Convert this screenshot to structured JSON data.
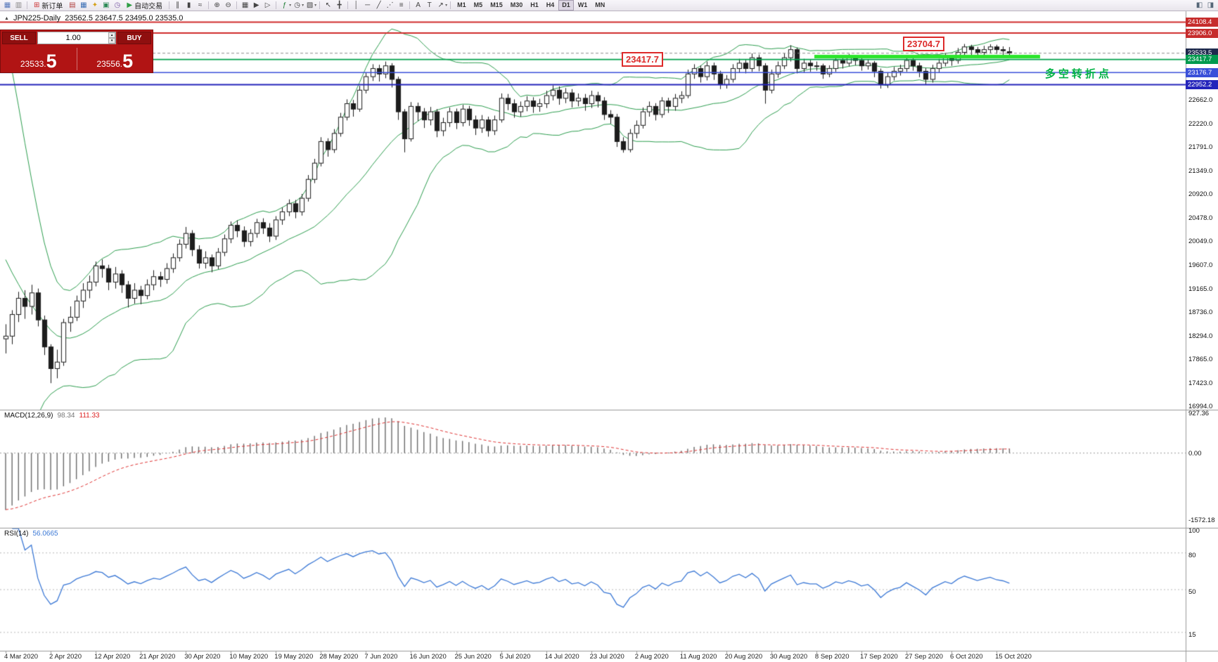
{
  "toolbar": {
    "file_icons": [
      {
        "name": "new-chart-icon",
        "glyph": "▦",
        "color": "#5577bb"
      },
      {
        "name": "profiles-icon",
        "glyph": "▥",
        "color": "#888888"
      }
    ],
    "new_order": {
      "label": "新订单",
      "icon_glyph": "⊞",
      "icon_color": "#cc3333"
    },
    "panel_icons": [
      {
        "name": "market-watch-icon",
        "glyph": "▤",
        "color": "#b0413e"
      },
      {
        "name": "data-window-icon",
        "glyph": "▦",
        "color": "#3b6fb5"
      },
      {
        "name": "navigator-icon",
        "glyph": "✦",
        "color": "#d4a017"
      },
      {
        "name": "terminal-icon",
        "glyph": "▣",
        "color": "#2e8b57"
      },
      {
        "name": "strategy-tester-icon",
        "glyph": "◷",
        "color": "#7b5aa6"
      }
    ],
    "autotrading": {
      "label": "自动交易",
      "icon_glyph": "▶",
      "icon_color": "#2e9e44"
    },
    "chart_type_icons": [
      {
        "name": "bar-chart-icon",
        "glyph": "∥",
        "color": "#444444"
      },
      {
        "name": "candlestick-chart-icon",
        "glyph": "▮",
        "color": "#444444"
      },
      {
        "name": "line-chart-icon",
        "glyph": "≈",
        "color": "#444444"
      }
    ],
    "zoom_icons": [
      {
        "name": "zoom-in-icon",
        "glyph": "⊕",
        "color": "#444444"
      },
      {
        "name": "zoom-out-icon",
        "glyph": "⊖",
        "color": "#444444"
      }
    ],
    "window_icons": [
      {
        "name": "tile-windows-icon",
        "glyph": "▦",
        "color": "#444444"
      },
      {
        "name": "auto-scroll-icon",
        "glyph": "▶",
        "color": "#444444"
      },
      {
        "name": "chart-shift-icon",
        "glyph": "▷",
        "color": "#444444"
      }
    ],
    "insert_icons": [
      {
        "name": "indicators-icon",
        "glyph": "ƒ",
        "color": "#1e7e34",
        "caret": true
      },
      {
        "name": "periods-icon",
        "glyph": "◷",
        "color": "#444444",
        "caret": true
      },
      {
        "name": "templates-icon",
        "glyph": "▧",
        "color": "#444444",
        "caret": true
      }
    ],
    "cursor_icons": [
      {
        "name": "cursor-icon",
        "glyph": "↖",
        "color": "#444444"
      },
      {
        "name": "crosshair-icon",
        "glyph": "╋",
        "color": "#444444"
      }
    ],
    "drawing_icons": [
      {
        "name": "vertical-line-icon",
        "glyph": "│",
        "color": "#444444"
      },
      {
        "name": "horizontal-line-icon",
        "glyph": "─",
        "color": "#444444"
      },
      {
        "name": "trendline-icon",
        "glyph": "╱",
        "color": "#444444"
      },
      {
        "name": "equidistant-channel-icon",
        "glyph": "⋰",
        "color": "#444444"
      },
      {
        "name": "fibonacci-icon",
        "glyph": "≡",
        "color": "#444444"
      }
    ],
    "text_icons": [
      {
        "name": "text-icon",
        "glyph": "A",
        "color": "#444444"
      },
      {
        "name": "text-label-icon",
        "glyph": "T",
        "color": "#444444"
      },
      {
        "name": "arrows-icon",
        "glyph": "↗",
        "color": "#444444",
        "caret": true
      }
    ],
    "timeframes": {
      "items": [
        "M1",
        "M5",
        "M15",
        "M30",
        "H1",
        "H4",
        "D1",
        "W1",
        "MN"
      ],
      "active": "D1"
    },
    "right_icons": [
      {
        "name": "charts-toggle-icon",
        "glyph": "◧",
        "color": "#556677"
      },
      {
        "name": "docking-icon",
        "glyph": "◨",
        "color": "#556677"
      }
    ]
  },
  "chart": {
    "title_text": "JPN225-Daily",
    "ohlc_text": "23562.5 23647.5 23495.0 23535.0",
    "one_click": {
      "sell_label": "SELL",
      "buy_label": "BUY",
      "volume": "1.00",
      "sell_price_main": "23533.",
      "sell_price_big": "5",
      "buy_price_main": "23556.",
      "buy_price_big": "5"
    },
    "annotations": {
      "level_box_1": "23417.7",
      "level_box_2": "23704.7",
      "cn_note": "多空转折点"
    },
    "price_axis": {
      "tags": [
        {
          "text": "24108.4",
          "price": 24108.4,
          "bg": "#c62b2b"
        },
        {
          "text": "23906.0",
          "price": 23906.0,
          "bg": "#c62b2b"
        },
        {
          "text": "23533.5",
          "price": 23533.5,
          "bg": "#1e2a4d"
        },
        {
          "text": "23417.7",
          "price": 23417.7,
          "bg": "#009a4e"
        },
        {
          "text": "23176.7",
          "price": 23176.7,
          "bg": "#3a50d9"
        },
        {
          "text": "22952.2",
          "price": 22952.2,
          "bg": "#2424bb"
        }
      ],
      "grid_labels": [
        "22662.0",
        "22220.0",
        "21791.0",
        "21349.0",
        "20920.0",
        "20478.0",
        "20049.0",
        "19607.0",
        "19165.0",
        "18736.0",
        "18294.0",
        "17865.0",
        "17423.0",
        "16994.0"
      ]
    },
    "lines": [
      {
        "price": 24108.4,
        "color": "#cf2b2b",
        "width": 2,
        "style": "solid"
      },
      {
        "price": 23906.0,
        "color": "#cf2b2b",
        "width": 2,
        "style": "solid"
      },
      {
        "price": 23533.5,
        "color": "#8a8a8a",
        "width": 1,
        "style": "dash"
      },
      {
        "price": 23417.7,
        "color": "#00a14b",
        "width": 1.6,
        "style": "solid"
      },
      {
        "price": 23176.7,
        "color": "#3a50d9",
        "width": 1.6,
        "style": "solid"
      },
      {
        "price": 22952.2,
        "color": "#2424bb",
        "width": 2,
        "style": "solid"
      }
    ],
    "trend_segment": {
      "price": 23470,
      "color": "#2be52b",
      "width": 5
    }
  },
  "macd": {
    "label": "MACD(12,26,9)",
    "value_main": "98.34",
    "value_signal": "111.33",
    "axis_labels": [
      "927.36",
      "0.00",
      "-1572.18"
    ],
    "axis_values": [
      927.36,
      0,
      -1572.18
    ]
  },
  "rsi": {
    "label": "RSI(14)",
    "value": "56.0665",
    "axis_labels": [
      "100",
      "80",
      "50",
      "15"
    ],
    "axis_values": [
      100,
      80,
      50,
      15
    ],
    "levels": [
      80,
      50,
      15
    ]
  },
  "chart_data": {
    "type": "candlestick",
    "symbol": "JPN225",
    "period": "Daily",
    "ylim": [
      16920,
      24310
    ],
    "x_label_every": 7,
    "x_labels": [
      "4 Mar 2020",
      "2 Apr 2020",
      "12 Apr 2020",
      "21 Apr 2020",
      "30 Apr 2020",
      "10 May 2020",
      "19 May 2020",
      "28 May 2020",
      "7 Jun 2020",
      "16 Jun 2020",
      "25 Jun 2020",
      "5 Jul 2020",
      "14 Jul 2020",
      "23 Jul 2020",
      "2 Aug 2020",
      "11 Aug 2020",
      "20 Aug 2020",
      "30 Aug 2020",
      "8 Sep 2020",
      "17 Sep 2020",
      "27 Sep 2020",
      "6 Oct 2020",
      "15 Oct 2020"
    ],
    "indicators": {
      "bollinger_period": 20,
      "bollinger_dev": 2,
      "macd": [
        12,
        26,
        9
      ],
      "rsi_period": 14
    },
    "candles": [
      [
        18250,
        18520,
        17980,
        18300
      ],
      [
        18300,
        18780,
        18150,
        18700
      ],
      [
        18700,
        19120,
        18560,
        19000
      ],
      [
        19000,
        19150,
        18620,
        18850
      ],
      [
        18850,
        19250,
        18700,
        19100
      ],
      [
        19100,
        19180,
        18480,
        18600
      ],
      [
        18600,
        18680,
        17950,
        18100
      ],
      [
        18100,
        18150,
        17430,
        17700
      ],
      [
        17700,
        18050,
        17520,
        17820
      ],
      [
        17820,
        18620,
        17750,
        18550
      ],
      [
        18550,
        18850,
        18380,
        18650
      ],
      [
        18650,
        19050,
        18580,
        18950
      ],
      [
        18950,
        19280,
        18820,
        19150
      ],
      [
        19150,
        19420,
        19000,
        19300
      ],
      [
        19300,
        19680,
        19220,
        19600
      ],
      [
        19600,
        19720,
        19380,
        19550
      ],
      [
        19550,
        19620,
        19150,
        19300
      ],
      [
        19300,
        19580,
        19180,
        19450
      ],
      [
        19450,
        19520,
        19100,
        19250
      ],
      [
        19250,
        19320,
        18830,
        19000
      ],
      [
        19000,
        19280,
        18900,
        19150
      ],
      [
        19150,
        19230,
        18890,
        19050
      ],
      [
        19050,
        19350,
        18980,
        19250
      ],
      [
        19250,
        19520,
        19150,
        19400
      ],
      [
        19400,
        19490,
        19210,
        19350
      ],
      [
        19350,
        19650,
        19270,
        19550
      ],
      [
        19550,
        19830,
        19470,
        19750
      ],
      [
        19750,
        20090,
        19680,
        20000
      ],
      [
        20000,
        20320,
        19920,
        20200
      ],
      [
        20200,
        20260,
        19780,
        19900
      ],
      [
        19900,
        19980,
        19550,
        19650
      ],
      [
        19650,
        19870,
        19550,
        19750
      ],
      [
        19750,
        19810,
        19480,
        19600
      ],
      [
        19600,
        19930,
        19540,
        19850
      ],
      [
        19850,
        20180,
        19780,
        20100
      ],
      [
        20100,
        20420,
        20020,
        20350
      ],
      [
        20350,
        20440,
        20130,
        20250
      ],
      [
        20250,
        20330,
        19950,
        20050
      ],
      [
        20050,
        20280,
        19960,
        20200
      ],
      [
        20200,
        20470,
        20120,
        20400
      ],
      [
        20400,
        20480,
        20190,
        20300
      ],
      [
        20300,
        20390,
        20040,
        20150
      ],
      [
        20150,
        20520,
        20080,
        20450
      ],
      [
        20450,
        20680,
        20360,
        20600
      ],
      [
        20600,
        20830,
        20520,
        20750
      ],
      [
        20750,
        20820,
        20480,
        20600
      ],
      [
        20600,
        20930,
        20530,
        20850
      ],
      [
        20850,
        21280,
        20790,
        21200
      ],
      [
        21200,
        21580,
        21130,
        21500
      ],
      [
        21500,
        21980,
        21440,
        21900
      ],
      [
        21900,
        21960,
        21620,
        21750
      ],
      [
        21750,
        22130,
        21690,
        22050
      ],
      [
        22050,
        22430,
        21990,
        22350
      ],
      [
        22350,
        22680,
        22290,
        22600
      ],
      [
        22600,
        22670,
        22360,
        22500
      ],
      [
        22500,
        22930,
        22450,
        22850
      ],
      [
        22850,
        23180,
        22790,
        23100
      ],
      [
        23100,
        23330,
        23020,
        23250
      ],
      [
        23250,
        23320,
        23010,
        23150
      ],
      [
        23150,
        23380,
        23070,
        23300
      ],
      [
        23300,
        23350,
        22900,
        23050
      ],
      [
        23050,
        23100,
        22300,
        22450
      ],
      [
        22450,
        22500,
        21700,
        21950
      ],
      [
        21950,
        22630,
        21900,
        22550
      ],
      [
        22550,
        22620,
        22280,
        22450
      ],
      [
        22450,
        22520,
        22150,
        22300
      ],
      [
        22300,
        22540,
        22200,
        22450
      ],
      [
        22450,
        22500,
        21980,
        22100
      ],
      [
        22100,
        22340,
        22000,
        22250
      ],
      [
        22250,
        22530,
        22170,
        22450
      ],
      [
        22450,
        22510,
        22130,
        22250
      ],
      [
        22250,
        22580,
        22180,
        22500
      ],
      [
        22500,
        22560,
        22190,
        22300
      ],
      [
        22300,
        22380,
        22020,
        22150
      ],
      [
        22150,
        22390,
        22060,
        22300
      ],
      [
        22300,
        22360,
        21990,
        22100
      ],
      [
        22100,
        22380,
        22020,
        22300
      ],
      [
        22300,
        22790,
        22250,
        22700
      ],
      [
        22700,
        22780,
        22480,
        22600
      ],
      [
        22600,
        22680,
        22340,
        22450
      ],
      [
        22450,
        22640,
        22360,
        22550
      ],
      [
        22550,
        22740,
        22460,
        22650
      ],
      [
        22650,
        22720,
        22430,
        22550
      ],
      [
        22550,
        22690,
        22450,
        22600
      ],
      [
        22600,
        22840,
        22520,
        22750
      ],
      [
        22750,
        22940,
        22660,
        22850
      ],
      [
        22850,
        22920,
        22580,
        22700
      ],
      [
        22700,
        22890,
        22610,
        22800
      ],
      [
        22800,
        22870,
        22530,
        22650
      ],
      [
        22650,
        22790,
        22550,
        22700
      ],
      [
        22700,
        22780,
        22470,
        22600
      ],
      [
        22600,
        22840,
        22520,
        22750
      ],
      [
        22750,
        22820,
        22530,
        22650
      ],
      [
        22650,
        22720,
        22300,
        22400
      ],
      [
        22400,
        22480,
        22230,
        22350
      ],
      [
        22350,
        22410,
        21800,
        21900
      ],
      [
        21900,
        21980,
        21694,
        21750
      ],
      [
        21750,
        22130,
        21700,
        22050
      ],
      [
        22050,
        22290,
        21960,
        22200
      ],
      [
        22200,
        22530,
        22140,
        22450
      ],
      [
        22450,
        22640,
        22360,
        22550
      ],
      [
        22550,
        22610,
        22290,
        22400
      ],
      [
        22400,
        22720,
        22340,
        22650
      ],
      [
        22650,
        22710,
        22430,
        22550
      ],
      [
        22550,
        22780,
        22470,
        22700
      ],
      [
        22700,
        22830,
        22610,
        22750
      ],
      [
        22750,
        23230,
        22700,
        23150
      ],
      [
        23150,
        23330,
        23060,
        23250
      ],
      [
        23250,
        23310,
        22990,
        23100
      ],
      [
        23100,
        23380,
        23030,
        23300
      ],
      [
        23300,
        23360,
        23040,
        23150
      ],
      [
        23150,
        23210,
        22870,
        22950
      ],
      [
        22950,
        23130,
        22880,
        23050
      ],
      [
        23050,
        23330,
        22990,
        23250
      ],
      [
        23250,
        23430,
        23170,
        23350
      ],
      [
        23350,
        23410,
        23160,
        23250
      ],
      [
        23250,
        23530,
        23190,
        23450
      ],
      [
        23450,
        23510,
        23200,
        23300
      ],
      [
        23300,
        23350,
        22600,
        22850
      ],
      [
        22850,
        23230,
        22790,
        23150
      ],
      [
        23150,
        23380,
        23080,
        23300
      ],
      [
        23300,
        23530,
        23240,
        23450
      ],
      [
        23450,
        23680,
        23380,
        23600
      ],
      [
        23600,
        23640,
        23160,
        23250
      ],
      [
        23250,
        23430,
        23170,
        23350
      ],
      [
        23350,
        23410,
        23190,
        23300
      ],
      [
        23300,
        23380,
        23210,
        23300
      ],
      [
        23300,
        23340,
        23060,
        23150
      ],
      [
        23150,
        23310,
        23090,
        23250
      ],
      [
        23250,
        23470,
        23190,
        23400
      ],
      [
        23400,
        23450,
        23250,
        23350
      ],
      [
        23350,
        23520,
        23290,
        23450
      ],
      [
        23450,
        23500,
        23310,
        23400
      ],
      [
        23400,
        23460,
        23210,
        23300
      ],
      [
        23300,
        23420,
        23230,
        23350
      ],
      [
        23350,
        23390,
        23090,
        23200
      ],
      [
        23200,
        23250,
        22880,
        22950
      ],
      [
        22950,
        23180,
        22890,
        23100
      ],
      [
        23100,
        23280,
        23030,
        23200
      ],
      [
        23200,
        23320,
        23120,
        23250
      ],
      [
        23250,
        23480,
        23190,
        23400
      ],
      [
        23400,
        23450,
        23210,
        23300
      ],
      [
        23300,
        23360,
        23090,
        23200
      ],
      [
        23200,
        23260,
        22950,
        23050
      ],
      [
        23050,
        23320,
        22990,
        23250
      ],
      [
        23250,
        23430,
        23180,
        23350
      ],
      [
        23350,
        23530,
        23290,
        23450
      ],
      [
        23450,
        23500,
        23300,
        23400
      ],
      [
        23400,
        23630,
        23340,
        23550
      ],
      [
        23550,
        23704.7,
        23490,
        23650
      ],
      [
        23650,
        23690,
        23500,
        23600
      ],
      [
        23600,
        23650,
        23460,
        23550
      ],
      [
        23550,
        23670,
        23490,
        23600
      ],
      [
        23600,
        23700,
        23530,
        23650
      ],
      [
        23650,
        23690,
        23520,
        23600
      ],
      [
        23600,
        23660,
        23470,
        23580
      ],
      [
        23562.5,
        23647.5,
        23495.0,
        23535.0
      ]
    ]
  }
}
